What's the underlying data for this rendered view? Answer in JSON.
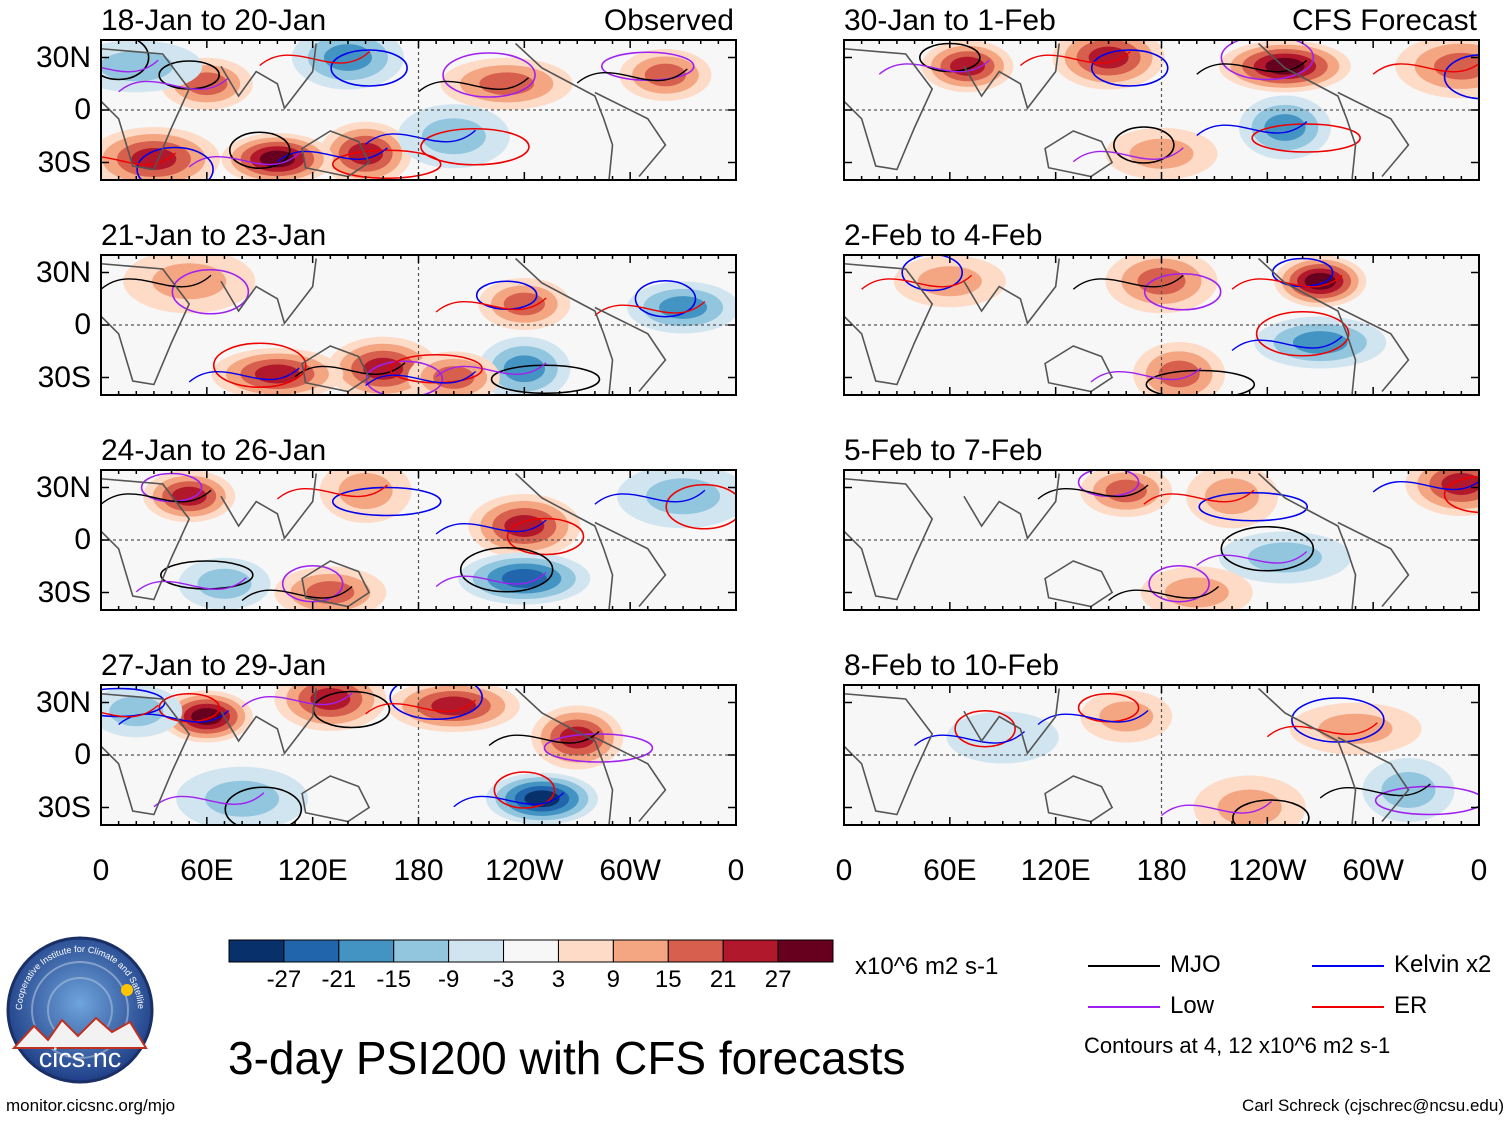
{
  "chart_data": {
    "type": "heatmap",
    "title": "3-day PSI200 with CFS forecasts",
    "variable": "PSI200 anomaly",
    "units": "x10^6 m2 s-1",
    "contour_note": "Contours at 4, 12 x10^6 m2 s-1",
    "x_ticks": [
      "0",
      "60E",
      "120E",
      "180",
      "120W",
      "60W",
      "0"
    ],
    "y_ticks": [
      "30N",
      "0",
      "30S"
    ],
    "column_headers": [
      "Observed",
      "CFS Forecast"
    ],
    "colorbar": {
      "labels": [
        "-27",
        "-21",
        "-15",
        "-9",
        "-3",
        "3",
        "9",
        "15",
        "21",
        "27"
      ],
      "colors": [
        "#08306b",
        "#2166ac",
        "#4393c3",
        "#92c5de",
        "#d1e5f0",
        "#f7f7f7",
        "#fddbc7",
        "#f4a582",
        "#d6604d",
        "#b2182b",
        "#67001f"
      ]
    },
    "legend": [
      {
        "name": "MJO",
        "color": "#000000"
      },
      {
        "name": "Kelvin x2",
        "color": "#0000ee"
      },
      {
        "name": "Low",
        "color": "#a020f0"
      },
      {
        "name": "ER",
        "color": "#ee0000"
      }
    ],
    "panels": [
      {
        "title": "18-Jan to 20-Jan",
        "label": "Observed",
        "side": "left"
      },
      {
        "title": "21-Jan to 23-Jan",
        "label": "",
        "side": "left"
      },
      {
        "title": "24-Jan to 26-Jan",
        "label": "",
        "side": "left"
      },
      {
        "title": "27-Jan to 29-Jan",
        "label": "",
        "side": "left"
      },
      {
        "title": "30-Jan to 1-Feb",
        "label": "CFS Forecast",
        "side": "right"
      },
      {
        "title": "2-Feb to 4-Feb",
        "label": "",
        "side": "right"
      },
      {
        "title": "5-Feb to 7-Feb",
        "label": "",
        "side": "right"
      },
      {
        "title": "8-Feb to 10-Feb",
        "label": "",
        "side": "right"
      }
    ],
    "anomaly_centers": [
      [
        {
          "lon": 60,
          "lat": 15,
          "v": 15
        },
        {
          "lon": 140,
          "lat": 30,
          "v": -18
        },
        {
          "lon": 230,
          "lat": 15,
          "v": 15
        },
        {
          "lon": 150,
          "lat": -25,
          "v": 24
        },
        {
          "lon": 100,
          "lat": -28,
          "v": 28
        },
        {
          "lon": 30,
          "lat": -28,
          "v": 21
        },
        {
          "lon": 320,
          "lat": 20,
          "v": 18
        },
        {
          "lon": 200,
          "lat": -15,
          "v": -10
        },
        {
          "lon": 20,
          "lat": 25,
          "v": -12
        }
      ],
      [
        {
          "lon": 240,
          "lat": 12,
          "v": 18
        },
        {
          "lon": 160,
          "lat": -25,
          "v": 24
        },
        {
          "lon": 100,
          "lat": -28,
          "v": 21
        },
        {
          "lon": 240,
          "lat": -25,
          "v": -15
        },
        {
          "lon": 330,
          "lat": 10,
          "v": -15
        },
        {
          "lon": 50,
          "lat": 25,
          "v": 12
        },
        {
          "lon": 200,
          "lat": -30,
          "v": 18
        }
      ],
      [
        {
          "lon": 50,
          "lat": 25,
          "v": 24
        },
        {
          "lon": 240,
          "lat": 8,
          "v": 24
        },
        {
          "lon": 240,
          "lat": -22,
          "v": -24
        },
        {
          "lon": 150,
          "lat": 28,
          "v": 9
        },
        {
          "lon": 130,
          "lat": -30,
          "v": 15
        },
        {
          "lon": 330,
          "lat": 25,
          "v": -12
        },
        {
          "lon": 70,
          "lat": -25,
          "v": -9
        }
      ],
      [
        {
          "lon": 60,
          "lat": 22,
          "v": 30
        },
        {
          "lon": 130,
          "lat": 32,
          "v": 24
        },
        {
          "lon": 200,
          "lat": 28,
          "v": 24
        },
        {
          "lon": 270,
          "lat": 10,
          "v": 24
        },
        {
          "lon": 250,
          "lat": -25,
          "v": -27
        },
        {
          "lon": 80,
          "lat": -25,
          "v": -12
        },
        {
          "lon": 20,
          "lat": 25,
          "v": -9
        }
      ]
    ],
    "forecast_centers": [
      [
        {
          "lon": 70,
          "lat": 25,
          "v": 21
        },
        {
          "lon": 150,
          "lat": 30,
          "v": 24
        },
        {
          "lon": 250,
          "lat": 25,
          "v": 27
        },
        {
          "lon": 250,
          "lat": -10,
          "v": -18
        },
        {
          "lon": 180,
          "lat": -25,
          "v": 12
        },
        {
          "lon": 350,
          "lat": 25,
          "v": 15
        }
      ],
      [
        {
          "lon": 270,
          "lat": 25,
          "v": 27
        },
        {
          "lon": 180,
          "lat": 25,
          "v": 15
        },
        {
          "lon": 270,
          "lat": -10,
          "v": -18
        },
        {
          "lon": 190,
          "lat": -28,
          "v": 15
        },
        {
          "lon": 60,
          "lat": 25,
          "v": 9
        }
      ],
      [
        {
          "lon": 160,
          "lat": 28,
          "v": 15
        },
        {
          "lon": 350,
          "lat": 32,
          "v": 21
        },
        {
          "lon": 250,
          "lat": -10,
          "v": -12
        },
        {
          "lon": 220,
          "lat": 25,
          "v": 9
        },
        {
          "lon": 200,
          "lat": -30,
          "v": 9
        }
      ],
      [
        {
          "lon": 160,
          "lat": 22,
          "v": 12
        },
        {
          "lon": 230,
          "lat": -30,
          "v": 12
        },
        {
          "lon": 290,
          "lat": 15,
          "v": 9
        },
        {
          "lon": 320,
          "lat": -20,
          "v": -9
        },
        {
          "lon": 90,
          "lat": 10,
          "v": -6
        }
      ]
    ]
  },
  "footer": {
    "logo_text": "cics.nc",
    "logo_ring_text": "Cooperative Institute for Climate and Satellites",
    "url": "monitor.cicsnc.org/mjo",
    "credit": "Carl Schreck (cjschrec@ncsu.edu)"
  }
}
